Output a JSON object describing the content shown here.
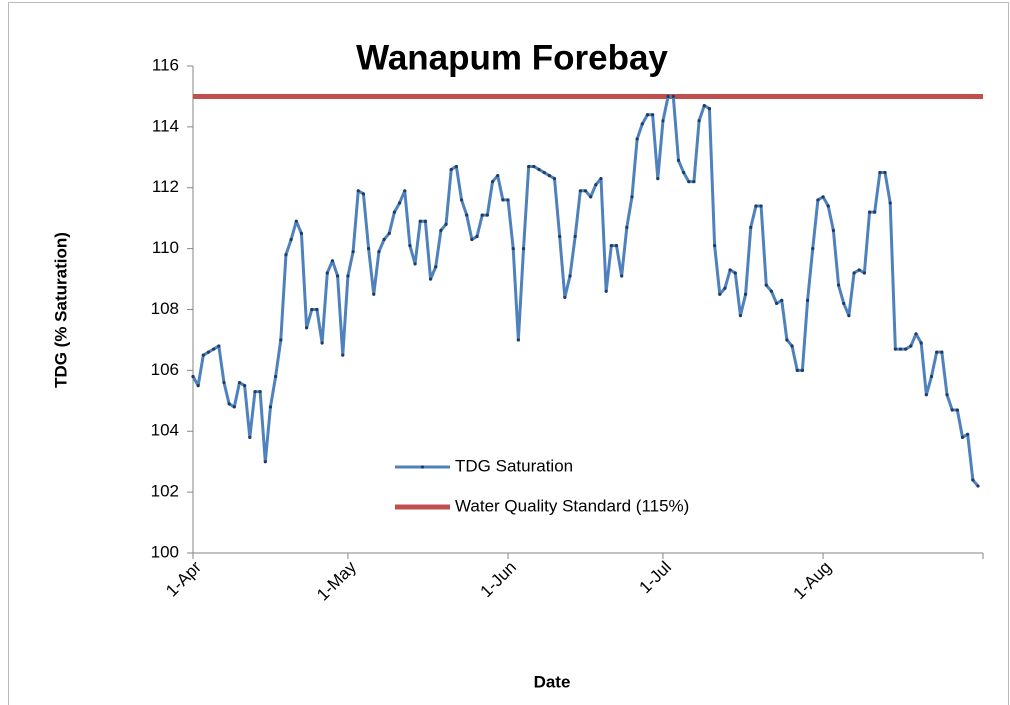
{
  "chart_data": {
    "type": "line",
    "title": "Wanapum Forebay",
    "x_label": "Date",
    "y_label": "TDG (% Saturation)",
    "categories": [
      "1-Apr",
      "2-Apr",
      "3-Apr",
      "4-Apr",
      "5-Apr",
      "6-Apr",
      "7-Apr",
      "8-Apr",
      "9-Apr",
      "10-Apr",
      "11-Apr",
      "12-Apr",
      "13-Apr",
      "14-Apr",
      "15-Apr",
      "16-Apr",
      "17-Apr",
      "18-Apr",
      "19-Apr",
      "20-Apr",
      "21-Apr",
      "22-Apr",
      "23-Apr",
      "24-Apr",
      "25-Apr",
      "26-Apr",
      "27-Apr",
      "28-Apr",
      "29-Apr",
      "30-Apr",
      "1-May",
      "2-May",
      "3-May",
      "4-May",
      "5-May",
      "6-May",
      "7-May",
      "8-May",
      "9-May",
      "10-May",
      "11-May",
      "12-May",
      "13-May",
      "14-May",
      "15-May",
      "16-May",
      "17-May",
      "18-May",
      "19-May",
      "20-May",
      "21-May",
      "22-May",
      "23-May",
      "24-May",
      "25-May",
      "26-May",
      "27-May",
      "28-May",
      "29-May",
      "30-May",
      "31-May",
      "1-Jun",
      "2-Jun",
      "3-Jun",
      "4-Jun",
      "5-Jun",
      "6-Jun",
      "7-Jun",
      "8-Jun",
      "9-Jun",
      "10-Jun",
      "11-Jun",
      "12-Jun",
      "13-Jun",
      "14-Jun",
      "15-Jun",
      "16-Jun",
      "17-Jun",
      "18-Jun",
      "19-Jun",
      "20-Jun",
      "21-Jun",
      "22-Jun",
      "23-Jun",
      "24-Jun",
      "25-Jun",
      "26-Jun",
      "27-Jun",
      "28-Jun",
      "29-Jun",
      "30-Jun",
      "1-Jul",
      "2-Jul",
      "3-Jul",
      "4-Jul",
      "5-Jul",
      "6-Jul",
      "7-Jul",
      "8-Jul",
      "9-Jul",
      "10-Jul",
      "11-Jul",
      "12-Jul",
      "13-Jul",
      "14-Jul",
      "15-Jul",
      "16-Jul",
      "17-Jul",
      "18-Jul",
      "19-Jul",
      "20-Jul",
      "21-Jul",
      "22-Jul",
      "23-Jul",
      "24-Jul",
      "25-Jul",
      "26-Jul",
      "27-Jul",
      "28-Jul",
      "29-Jul",
      "30-Jul",
      "31-Jul",
      "1-Aug",
      "2-Aug",
      "3-Aug",
      "4-Aug",
      "5-Aug",
      "6-Aug",
      "7-Aug",
      "8-Aug",
      "9-Aug",
      "10-Aug",
      "11-Aug",
      "12-Aug",
      "13-Aug",
      "14-Aug",
      "15-Aug",
      "16-Aug",
      "17-Aug",
      "18-Aug",
      "19-Aug",
      "20-Aug",
      "21-Aug",
      "22-Aug",
      "23-Aug",
      "24-Aug",
      "25-Aug",
      "26-Aug",
      "27-Aug",
      "28-Aug",
      "29-Aug",
      "30-Aug",
      "31-Aug"
    ],
    "series": [
      {
        "name": "TDG Saturation",
        "color": "#4f81bd",
        "values": [
          105.8,
          105.5,
          106.5,
          106.6,
          106.7,
          106.8,
          105.6,
          104.9,
          104.8,
          105.6,
          105.5,
          103.8,
          105.3,
          105.3,
          103.0,
          104.8,
          105.8,
          107.0,
          109.8,
          110.3,
          110.9,
          110.5,
          107.4,
          108.0,
          108.0,
          106.9,
          109.2,
          109.6,
          109.1,
          106.5,
          109.1,
          109.9,
          111.9,
          111.8,
          110.0,
          108.5,
          109.9,
          110.3,
          110.5,
          111.2,
          111.5,
          111.9,
          110.1,
          109.5,
          110.9,
          110.9,
          109.0,
          109.4,
          110.6,
          110.8,
          112.6,
          112.7,
          111.6,
          111.1,
          110.3,
          110.4,
          111.1,
          111.1,
          112.2,
          112.4,
          111.6,
          111.6,
          110.0,
          107.0,
          110.0,
          112.7,
          112.7,
          112.6,
          112.5,
          112.4,
          112.3,
          110.4,
          108.4,
          109.1,
          110.4,
          111.9,
          111.9,
          111.7,
          112.1,
          112.3,
          108.6,
          110.1,
          110.1,
          109.1,
          110.7,
          111.7,
          113.6,
          114.1,
          114.4,
          114.4,
          112.3,
          114.2,
          115.0,
          115.0,
          112.9,
          112.5,
          112.2,
          112.2,
          114.2,
          114.7,
          114.6,
          110.1,
          108.5,
          108.7,
          109.3,
          109.2,
          107.8,
          108.5,
          110.7,
          111.4,
          111.4,
          108.8,
          108.6,
          108.2,
          108.3,
          107.0,
          106.8,
          106.0,
          106.0,
          108.3,
          110.0,
          111.6,
          111.7,
          111.4,
          110.6,
          108.8,
          108.2,
          107.8,
          109.2,
          109.3,
          109.2,
          111.2,
          111.2,
          112.5,
          112.5,
          111.5,
          106.7,
          106.7,
          106.7,
          106.8,
          107.2,
          106.9,
          105.2,
          105.8,
          106.6,
          106.6,
          105.2,
          104.7,
          104.7,
          103.8,
          103.9,
          102.4,
          102.2
        ]
      }
    ],
    "reference_lines": [
      {
        "name": "Water Quality Standard (115%)",
        "color": "#c0504d",
        "value": 115
      }
    ],
    "ylim": [
      100,
      116
    ],
    "yticks": [
      100,
      102,
      104,
      106,
      108,
      110,
      112,
      114,
      116
    ],
    "grid": false
  }
}
